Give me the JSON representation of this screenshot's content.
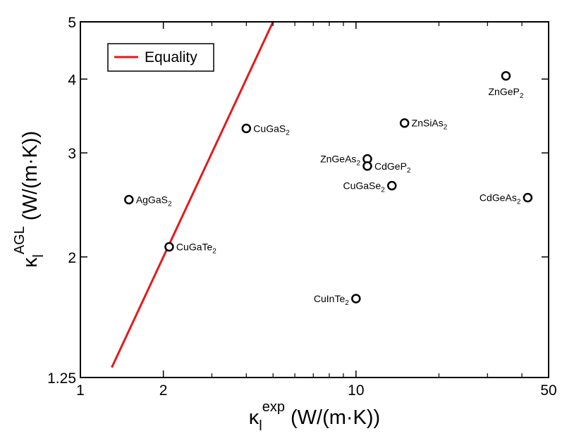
{
  "chart_data": {
    "type": "scatter",
    "xscale": "log",
    "yscale": "log",
    "xlim": [
      1,
      50
    ],
    "ylim": [
      1.25,
      5
    ],
    "xticks": [
      1,
      2,
      10,
      50
    ],
    "xtick_labels": [
      "1",
      "2",
      "10",
      "50"
    ],
    "yticks": [
      1.25,
      2,
      3,
      4,
      5
    ],
    "ytick_labels": [
      "1.25",
      "2",
      "3",
      "4",
      "5"
    ],
    "xlabel": {
      "symbol": "κ",
      "sub": "l",
      "sup": "exp",
      "unit": "(W/(m·K))"
    },
    "ylabel": {
      "symbol": "κ",
      "sub": "l",
      "sup": "AGL",
      "unit": "(W/(m·K))"
    },
    "legend": {
      "position": "top-left",
      "entries": [
        {
          "label": "Equality",
          "color": "#e41a1c"
        }
      ]
    },
    "reference_line": {
      "name": "Equality",
      "color": "#e41a1c",
      "slope": 1,
      "intercept": 0
    },
    "points": [
      {
        "x": 1.5,
        "y": 2.5,
        "base": "AgGaS",
        "sub": "2",
        "pos": "right"
      },
      {
        "x": 2.1,
        "y": 2.08,
        "base": "CuGaTe",
        "sub": "2",
        "pos": "right"
      },
      {
        "x": 4.0,
        "y": 3.3,
        "base": "CuGaS",
        "sub": "2",
        "pos": "right"
      },
      {
        "x": 10.0,
        "y": 1.7,
        "base": "CuInTe",
        "sub": "2",
        "pos": "left"
      },
      {
        "x": 11.0,
        "y": 2.93,
        "base": "ZnGeAs",
        "sub": "2",
        "pos": "left"
      },
      {
        "x": 11.0,
        "y": 2.85,
        "base": "CdGeP",
        "sub": "2",
        "pos": "right"
      },
      {
        "x": 13.5,
        "y": 2.64,
        "base": "CuGaSe",
        "sub": "2",
        "pos": "left"
      },
      {
        "x": 15.0,
        "y": 3.37,
        "base": "ZnSiAs",
        "sub": "2",
        "pos": "right"
      },
      {
        "x": 35.0,
        "y": 4.05,
        "base": "ZnGeP",
        "sub": "2",
        "pos": "below"
      },
      {
        "x": 42.0,
        "y": 2.52,
        "base": "CdGeAs",
        "sub": "2",
        "pos": "left"
      }
    ]
  }
}
